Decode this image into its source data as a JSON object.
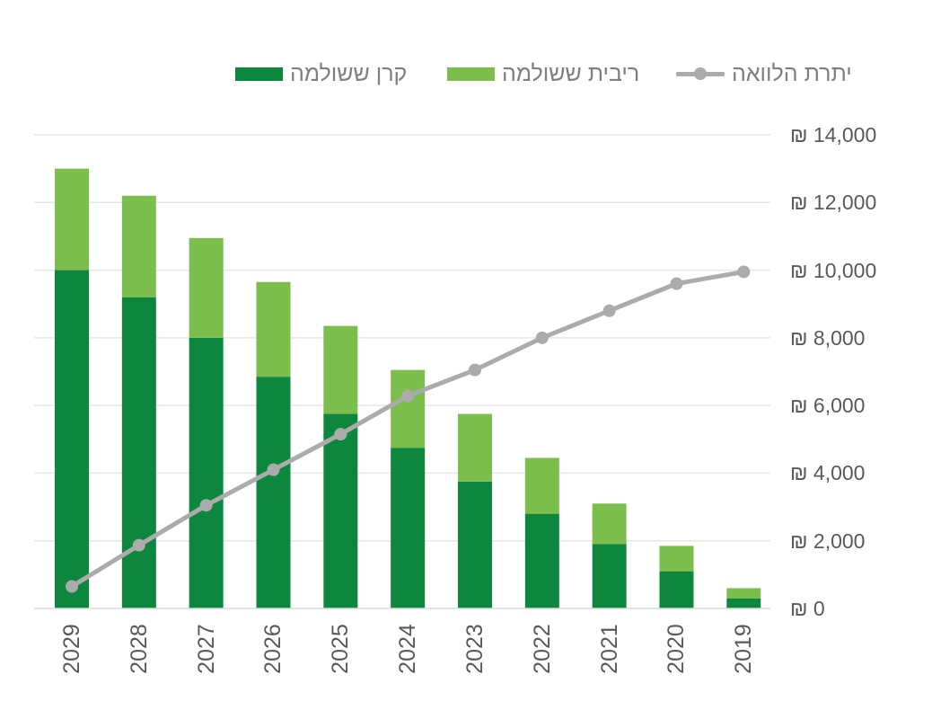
{
  "chart_data": {
    "type": "combo-stacked-bar-line",
    "title": "",
    "rtl_x_axis": true,
    "categories": [
      "2029",
      "2028",
      "2027",
      "2026",
      "2025",
      "2024",
      "2023",
      "2022",
      "2021",
      "2020",
      "2019"
    ],
    "series": [
      {
        "name": "קרן ששולמה",
        "type": "bar",
        "stack": "bottom",
        "color": "#0e873e",
        "values": [
          10000,
          9200,
          8000,
          6850,
          5750,
          4750,
          3750,
          2800,
          1900,
          1100,
          300
        ]
      },
      {
        "name": "ריבית ששולמה",
        "type": "bar",
        "stack": "top",
        "color": "#7cbe4c",
        "values": [
          3000,
          3000,
          2950,
          2800,
          2600,
          2300,
          2000,
          1650,
          1200,
          750,
          300
        ]
      },
      {
        "name": "יתרת הלוואה",
        "type": "line",
        "color": "#ababab",
        "values": [
          650,
          1870,
          3050,
          4100,
          5150,
          6280,
          7050,
          8000,
          8800,
          9600,
          9950
        ]
      }
    ],
    "y_axis": {
      "side": "right",
      "min": 0,
      "max": 14000,
      "step": 2000,
      "currency": "₪",
      "tick_labels": [
        "₪ 0",
        "₪ 2,000",
        "₪ 4,000",
        "₪ 6,000",
        "₪ 8,000",
        "₪ 10,000",
        "₪ 12,000",
        "₪ 14,000"
      ]
    },
    "x_axis": {
      "tick_rotation_deg": -90
    },
    "legend_position": "top",
    "grid": true,
    "colors": {
      "grid": "#e7e7e7",
      "axis_line": "#d8d8d8",
      "tick_text": "#595959",
      "legend_text": "#7f7f7f"
    }
  }
}
